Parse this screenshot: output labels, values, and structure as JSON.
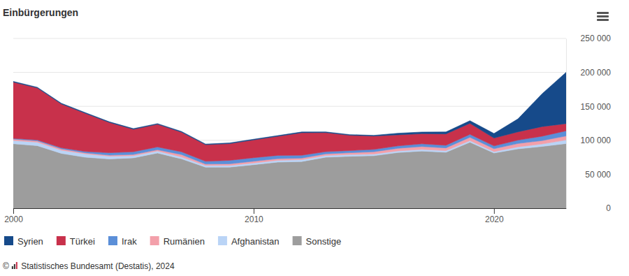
{
  "chart_data": {
    "type": "area",
    "stacked": true,
    "title": "Einbürgerungen",
    "source": "© Statistisches Bundesamt (Destatis), 2024",
    "x": [
      2000,
      2001,
      2002,
      2003,
      2004,
      2005,
      2006,
      2007,
      2008,
      2009,
      2010,
      2011,
      2012,
      2013,
      2014,
      2015,
      2016,
      2017,
      2018,
      2019,
      2020,
      2021,
      2022,
      2023
    ],
    "xlim": [
      2000,
      2023
    ],
    "xticks": [
      2000,
      2010,
      2020
    ],
    "ylim": [
      0,
      250000
    ],
    "yticks": [
      {
        "value": 0,
        "label": "0"
      },
      {
        "value": 50000,
        "label": "50 000"
      },
      {
        "value": 100000,
        "label": "100 000"
      },
      {
        "value": 150000,
        "label": "150 000"
      },
      {
        "value": 200000,
        "label": "200 000"
      },
      {
        "value": 250000,
        "label": "250 000"
      }
    ],
    "grid": true,
    "legend": "bottom",
    "series": [
      {
        "name": "Syrien",
        "color": "#164a8a",
        "values": [
          1000,
          1000,
          1000,
          1000,
          1000,
          1000,
          1000,
          1000,
          1000,
          1000,
          1000,
          1000,
          1100,
          1000,
          1000,
          1000,
          2300,
          2500,
          2900,
          3900,
          6700,
          19100,
          48300,
          75500
        ]
      },
      {
        "name": "Türkei",
        "color": "#c8314b",
        "values": [
          82900,
          76600,
          64600,
          56200,
          44500,
          33000,
          33400,
          28900,
          24400,
          24600,
          26200,
          28100,
          33200,
          28100,
          22500,
          19700,
          16300,
          14900,
          16700,
          16200,
          11600,
          12200,
          14200,
          10700
        ]
      },
      {
        "name": "Irak",
        "color": "#5b8fd8",
        "values": [
          1000,
          1300,
          1500,
          2000,
          3600,
          4100,
          4100,
          4100,
          4100,
          5100,
          5200,
          4800,
          4200,
          3200,
          3200,
          3400,
          3600,
          3900,
          3900,
          4300,
          4100,
          5000,
          6400,
          7500
        ]
      },
      {
        "name": "Rumänien",
        "color": "#f3a0aa",
        "values": [
          2000,
          2000,
          1900,
          1500,
          1500,
          1800,
          1700,
          3500,
          2100,
          2400,
          2600,
          2400,
          2300,
          2300,
          2600,
          3400,
          3800,
          4300,
          4000,
          4900,
          4200,
          4900,
          5000,
          5900
        ]
      },
      {
        "name": "Afghanistan",
        "color": "#bad4f6",
        "values": [
          4800,
          5100,
          4800,
          4900,
          4100,
          3100,
          3100,
          2800,
          2500,
          2500,
          2500,
          2700,
          2700,
          2700,
          2600,
          2500,
          2400,
          2400,
          2400,
          2400,
          2100,
          3000,
          3600,
          5300
        ]
      },
      {
        "name": "Sonstige",
        "color": "#9d9d9d",
        "values": [
          95000,
          92100,
          80700,
          75100,
          72500,
          74200,
          81300,
          72700,
          60400,
          60500,
          64100,
          67900,
          68800,
          75100,
          76500,
          77300,
          82000,
          84200,
          82400,
          97200,
          81300,
          87400,
          91000,
          95200
        ]
      }
    ]
  }
}
